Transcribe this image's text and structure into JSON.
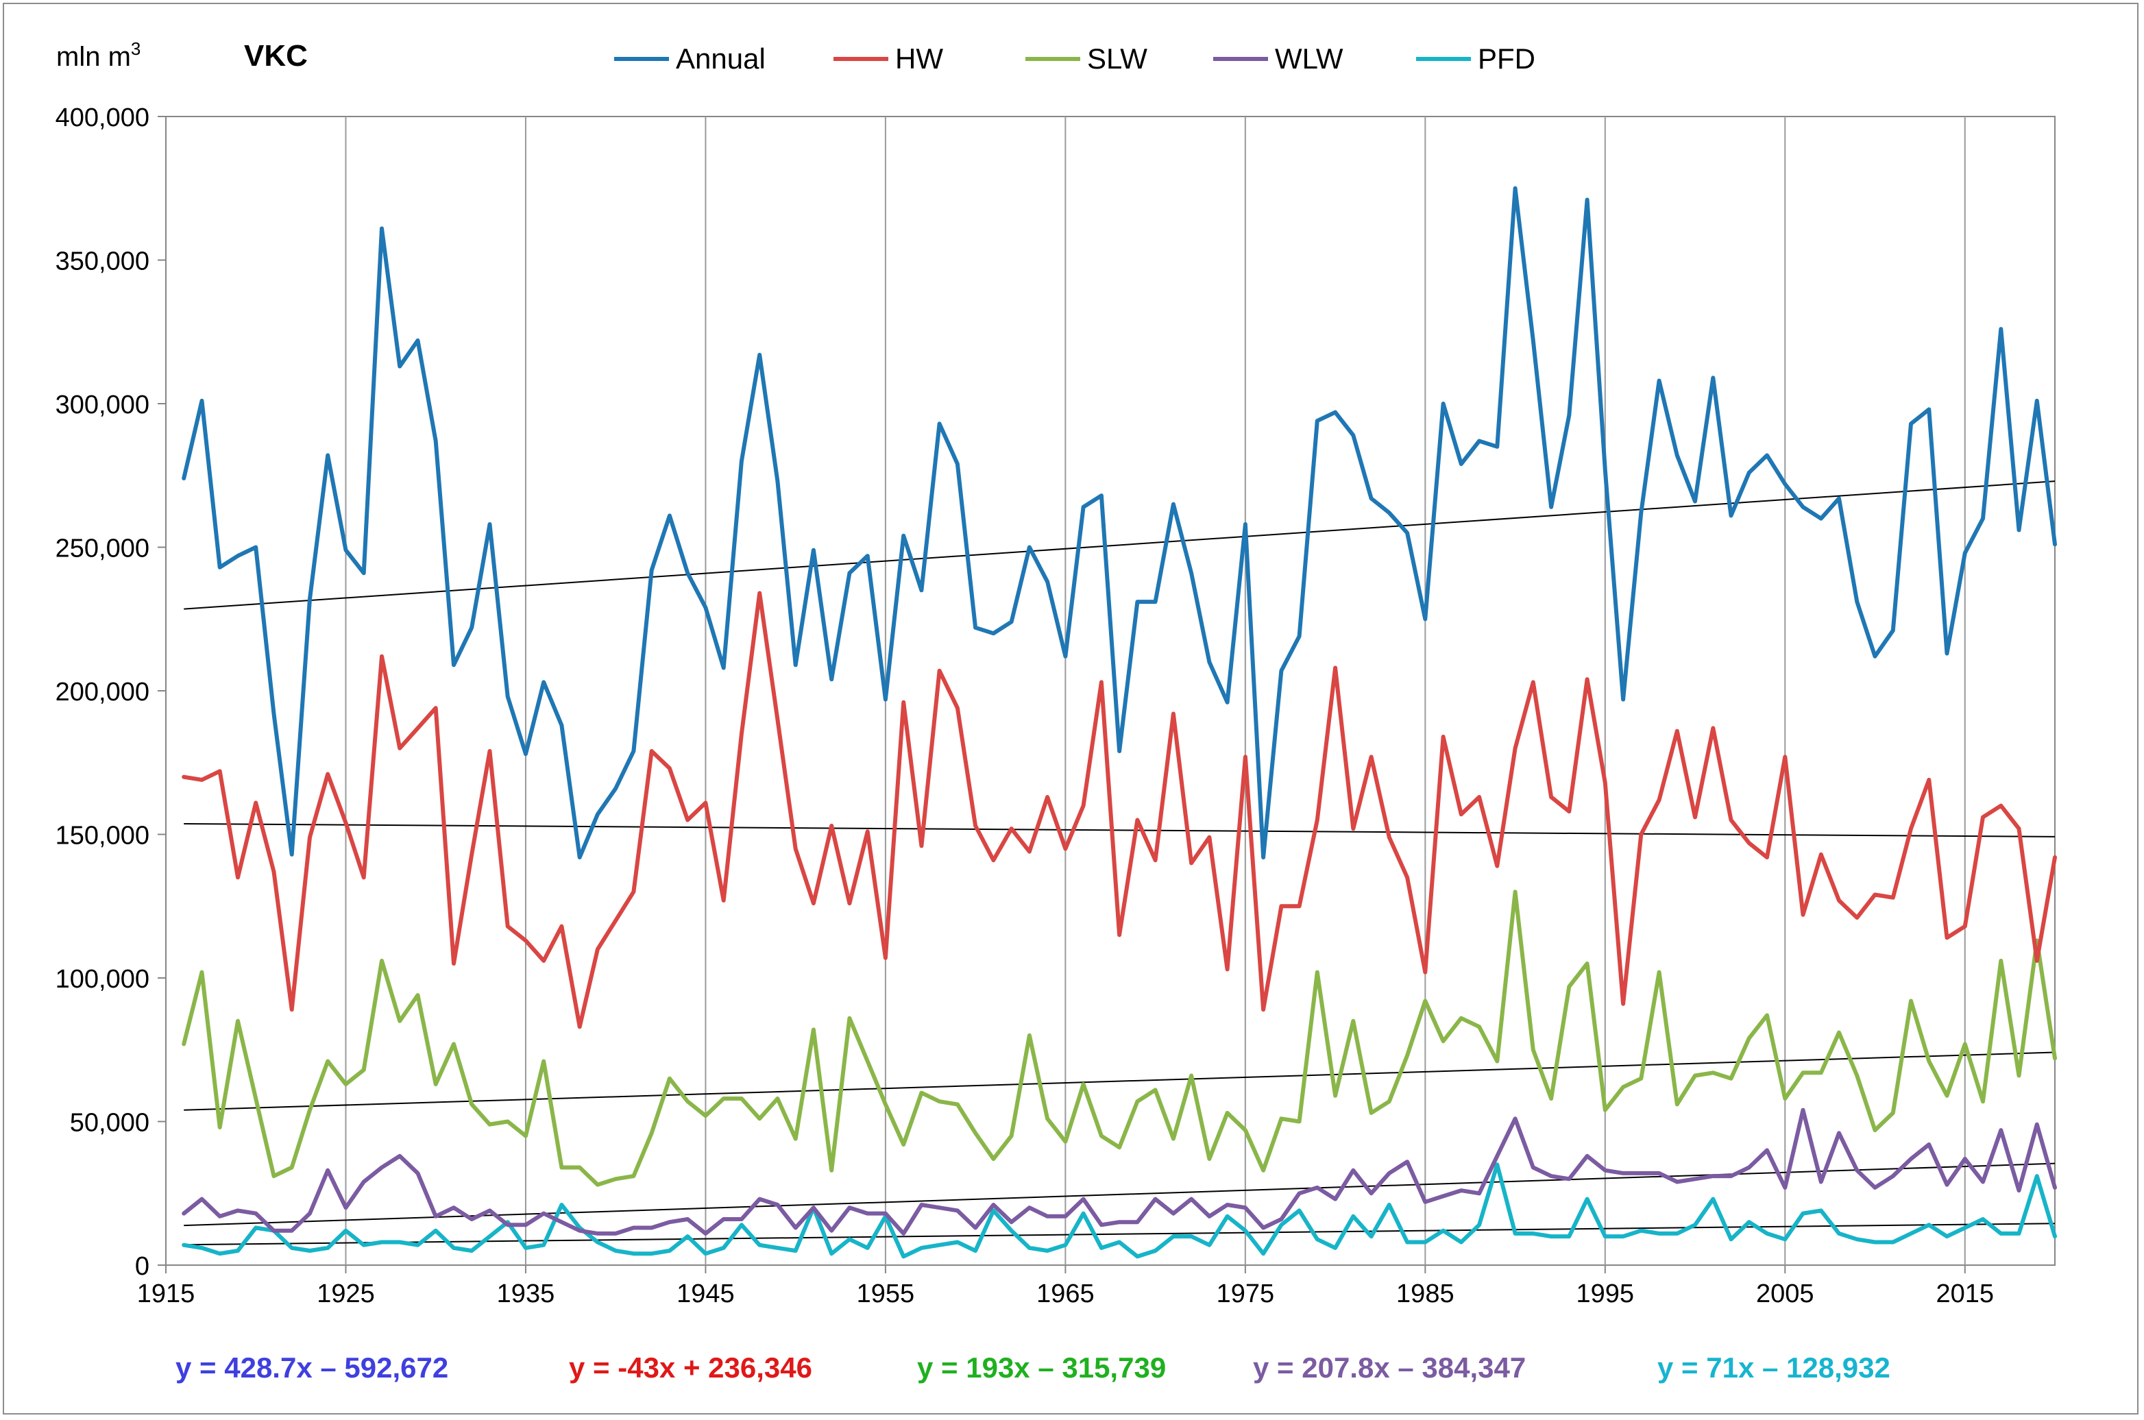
{
  "chart_data": {
    "type": "line",
    "title": "VKC",
    "ylabel": "mln m",
    "ylabel_superscript": "3",
    "xlabel": "",
    "xlim": [
      1915,
      2020
    ],
    "ylim": [
      0,
      400000
    ],
    "x_ticks": [
      1915,
      1925,
      1935,
      1945,
      1955,
      1965,
      1975,
      1985,
      1995,
      2005,
      2015
    ],
    "y_ticks": [
      0,
      50000,
      100000,
      150000,
      200000,
      250000,
      300000,
      350000,
      400000
    ],
    "y_tick_labels": [
      "0",
      "50,000",
      "100,000",
      "150,000",
      "200,000",
      "250,000",
      "300,000",
      "350,000",
      "400,000"
    ],
    "grid": "vertical",
    "legend_position": "top",
    "x": [
      1916,
      1917,
      1918,
      1919,
      1920,
      1921,
      1922,
      1923,
      1924,
      1925,
      1926,
      1927,
      1928,
      1929,
      1930,
      1931,
      1932,
      1933,
      1934,
      1935,
      1936,
      1937,
      1938,
      1939,
      1940,
      1941,
      1942,
      1943,
      1944,
      1945,
      1946,
      1947,
      1948,
      1949,
      1950,
      1951,
      1952,
      1953,
      1954,
      1955,
      1956,
      1957,
      1958,
      1959,
      1960,
      1961,
      1962,
      1963,
      1964,
      1965,
      1966,
      1967,
      1968,
      1969,
      1970,
      1971,
      1972,
      1973,
      1974,
      1975,
      1976,
      1977,
      1978,
      1979,
      1980,
      1981,
      1982,
      1983,
      1984,
      1985,
      1986,
      1987,
      1988,
      1989,
      1990,
      1991,
      1992,
      1993,
      1994,
      1995,
      1996,
      1997,
      1998,
      1999,
      2000,
      2001,
      2002,
      2003,
      2004,
      2005,
      2006,
      2007,
      2008,
      2009,
      2010,
      2011,
      2012,
      2013,
      2014,
      2015,
      2016,
      2017,
      2018,
      2019,
      2020
    ],
    "series": [
      {
        "name": "Annual",
        "color": "#1f77b4",
        "values": [
          274000,
          301000,
          243000,
          247000,
          250000,
          192000,
          143000,
          232000,
          282000,
          249000,
          241000,
          361000,
          313000,
          322000,
          287000,
          209000,
          222000,
          258000,
          198000,
          178000,
          203000,
          188000,
          142000,
          157000,
          166000,
          179000,
          242000,
          261000,
          241000,
          229000,
          208000,
          280000,
          317000,
          273000,
          209000,
          249000,
          204000,
          241000,
          247000,
          197000,
          254000,
          235000,
          293000,
          279000,
          222000,
          220000,
          224000,
          250000,
          238000,
          212000,
          264000,
          268000,
          179000,
          231000,
          231000,
          265000,
          241000,
          210000,
          196000,
          258000,
          142000,
          207000,
          219000,
          294000,
          297000,
          289000,
          267000,
          262000,
          255000,
          225000,
          300000,
          279000,
          287000,
          285000,
          375000,
          322000,
          264000,
          296000,
          371000,
          277000,
          197000,
          262000,
          308000,
          282000,
          266000,
          309000,
          261000,
          276000,
          282000,
          272000,
          264000,
          260000,
          267000,
          231000,
          212000,
          221000,
          293000,
          298000,
          213000,
          248000,
          260000,
          326000,
          256000,
          301000,
          251000
        ]
      },
      {
        "name": "HW",
        "color": "#d94643",
        "values": [
          170000,
          169000,
          172000,
          135000,
          161000,
          137000,
          89000,
          149000,
          171000,
          154000,
          135000,
          212000,
          180000,
          187000,
          194000,
          105000,
          143000,
          179000,
          118000,
          113000,
          106000,
          118000,
          83000,
          110000,
          120000,
          130000,
          179000,
          173000,
          155000,
          161000,
          127000,
          185000,
          234000,
          190000,
          145000,
          126000,
          153000,
          126000,
          151000,
          107000,
          196000,
          146000,
          207000,
          194000,
          153000,
          141000,
          152000,
          144000,
          163000,
          145000,
          160000,
          203000,
          115000,
          155000,
          141000,
          192000,
          140000,
          149000,
          103000,
          177000,
          89000,
          125000,
          125000,
          155000,
          208000,
          152000,
          177000,
          149000,
          135000,
          102000,
          184000,
          157000,
          163000,
          139000,
          180000,
          203000,
          163000,
          158000,
          204000,
          168000,
          91000,
          150000,
          162000,
          186000,
          156000,
          187000,
          155000,
          147000,
          142000,
          177000,
          122000,
          143000,
          127000,
          121000,
          129000,
          128000,
          152000,
          169000,
          114000,
          118000,
          156000,
          160000,
          152000,
          106000,
          142000
        ]
      },
      {
        "name": "SLW",
        "color": "#8ab649",
        "values": [
          77000,
          102000,
          48000,
          85000,
          58000,
          31000,
          34000,
          54000,
          71000,
          63000,
          68000,
          106000,
          85000,
          94000,
          63000,
          77000,
          56000,
          49000,
          50000,
          45000,
          71000,
          34000,
          34000,
          28000,
          30000,
          31000,
          46000,
          65000,
          57000,
          52000,
          58000,
          58000,
          51000,
          58000,
          44000,
          82000,
          33000,
          86000,
          71000,
          56000,
          42000,
          60000,
          57000,
          56000,
          46000,
          37000,
          45000,
          80000,
          51000,
          43000,
          63000,
          45000,
          41000,
          57000,
          61000,
          44000,
          66000,
          37000,
          53000,
          47000,
          33000,
          51000,
          50000,
          102000,
          59000,
          85000,
          53000,
          57000,
          73000,
          92000,
          78000,
          86000,
          83000,
          71000,
          130000,
          75000,
          58000,
          97000,
          105000,
          54000,
          62000,
          65000,
          102000,
          56000,
          66000,
          67000,
          65000,
          79000,
          87000,
          58000,
          67000,
          67000,
          81000,
          66000,
          47000,
          53000,
          92000,
          71000,
          59000,
          77000,
          57000,
          106000,
          66000,
          113000,
          72000
        ]
      },
      {
        "name": "WLW",
        "color": "#7b5ba1",
        "values": [
          18000,
          23000,
          17000,
          19000,
          18000,
          12000,
          12000,
          18000,
          33000,
          20000,
          29000,
          34000,
          38000,
          32000,
          17000,
          20000,
          16000,
          19000,
          14000,
          14000,
          18000,
          15000,
          12000,
          11000,
          11000,
          13000,
          13000,
          15000,
          16000,
          11000,
          16000,
          16000,
          23000,
          21000,
          13000,
          20000,
          12000,
          20000,
          18000,
          18000,
          11000,
          21000,
          20000,
          19000,
          13000,
          21000,
          15000,
          20000,
          17000,
          17000,
          23000,
          14000,
          15000,
          15000,
          23000,
          18000,
          23000,
          17000,
          21000,
          20000,
          13000,
          16000,
          25000,
          27000,
          23000,
          33000,
          25000,
          32000,
          36000,
          22000,
          24000,
          26000,
          25000,
          38000,
          51000,
          34000,
          31000,
          30000,
          38000,
          33000,
          32000,
          32000,
          32000,
          29000,
          30000,
          31000,
          31000,
          34000,
          40000,
          27000,
          54000,
          29000,
          46000,
          33000,
          27000,
          31000,
          37000,
          42000,
          28000,
          37000,
          29000,
          47000,
          26000,
          49000,
          27000
        ]
      },
      {
        "name": "PFD",
        "color": "#17b4c8",
        "values": [
          7000,
          6000,
          4000,
          5000,
          13000,
          12000,
          6000,
          5000,
          6000,
          12000,
          7000,
          8000,
          8000,
          7000,
          12000,
          6000,
          5000,
          10000,
          15000,
          6000,
          7000,
          21000,
          13000,
          8000,
          5000,
          4000,
          4000,
          5000,
          10000,
          4000,
          6000,
          14000,
          7000,
          6000,
          5000,
          20000,
          4000,
          9000,
          6000,
          17000,
          3000,
          6000,
          7000,
          8000,
          5000,
          19000,
          12000,
          6000,
          5000,
          7000,
          18000,
          6000,
          8000,
          3000,
          5000,
          10000,
          10000,
          7000,
          17000,
          12000,
          4000,
          14000,
          19000,
          9000,
          6000,
          17000,
          10000,
          21000,
          8000,
          8000,
          12000,
          8000,
          14000,
          35000,
          11000,
          11000,
          10000,
          10000,
          23000,
          10000,
          10000,
          12000,
          11000,
          11000,
          14000,
          23000,
          9000,
          15000,
          11000,
          9000,
          18000,
          19000,
          11000,
          9000,
          8000,
          8000,
          11000,
          14000,
          10000,
          13000,
          16000,
          11000,
          11000,
          31000,
          10000
        ]
      }
    ],
    "trendlines": [
      {
        "series": "Annual",
        "equation": "y = 428.7x – 592,672",
        "color": "#3f3fe0",
        "start": [
          1916,
          228500
        ],
        "end": [
          2020,
          273000
        ]
      },
      {
        "series": "HW",
        "equation": "y = -43x + 236,346",
        "color": "#e01818",
        "start": [
          1916,
          153700
        ],
        "end": [
          2020,
          149200
        ]
      },
      {
        "series": "SLW",
        "equation": "y = 193x – 315,739",
        "color": "#1fb01f",
        "start": [
          1916,
          54000
        ],
        "end": [
          2020,
          74100
        ]
      },
      {
        "series": "WLW",
        "equation": "y = 207.8x – 384,347",
        "color": "#7b5ba1",
        "start": [
          1916,
          13800
        ],
        "end": [
          2020,
          35400
        ]
      },
      {
        "series": "PFD",
        "equation": "y = 71x – 128,932",
        "color": "#17b4d0",
        "start": [
          1916,
          7100
        ],
        "end": [
          2020,
          14500
        ]
      }
    ]
  }
}
